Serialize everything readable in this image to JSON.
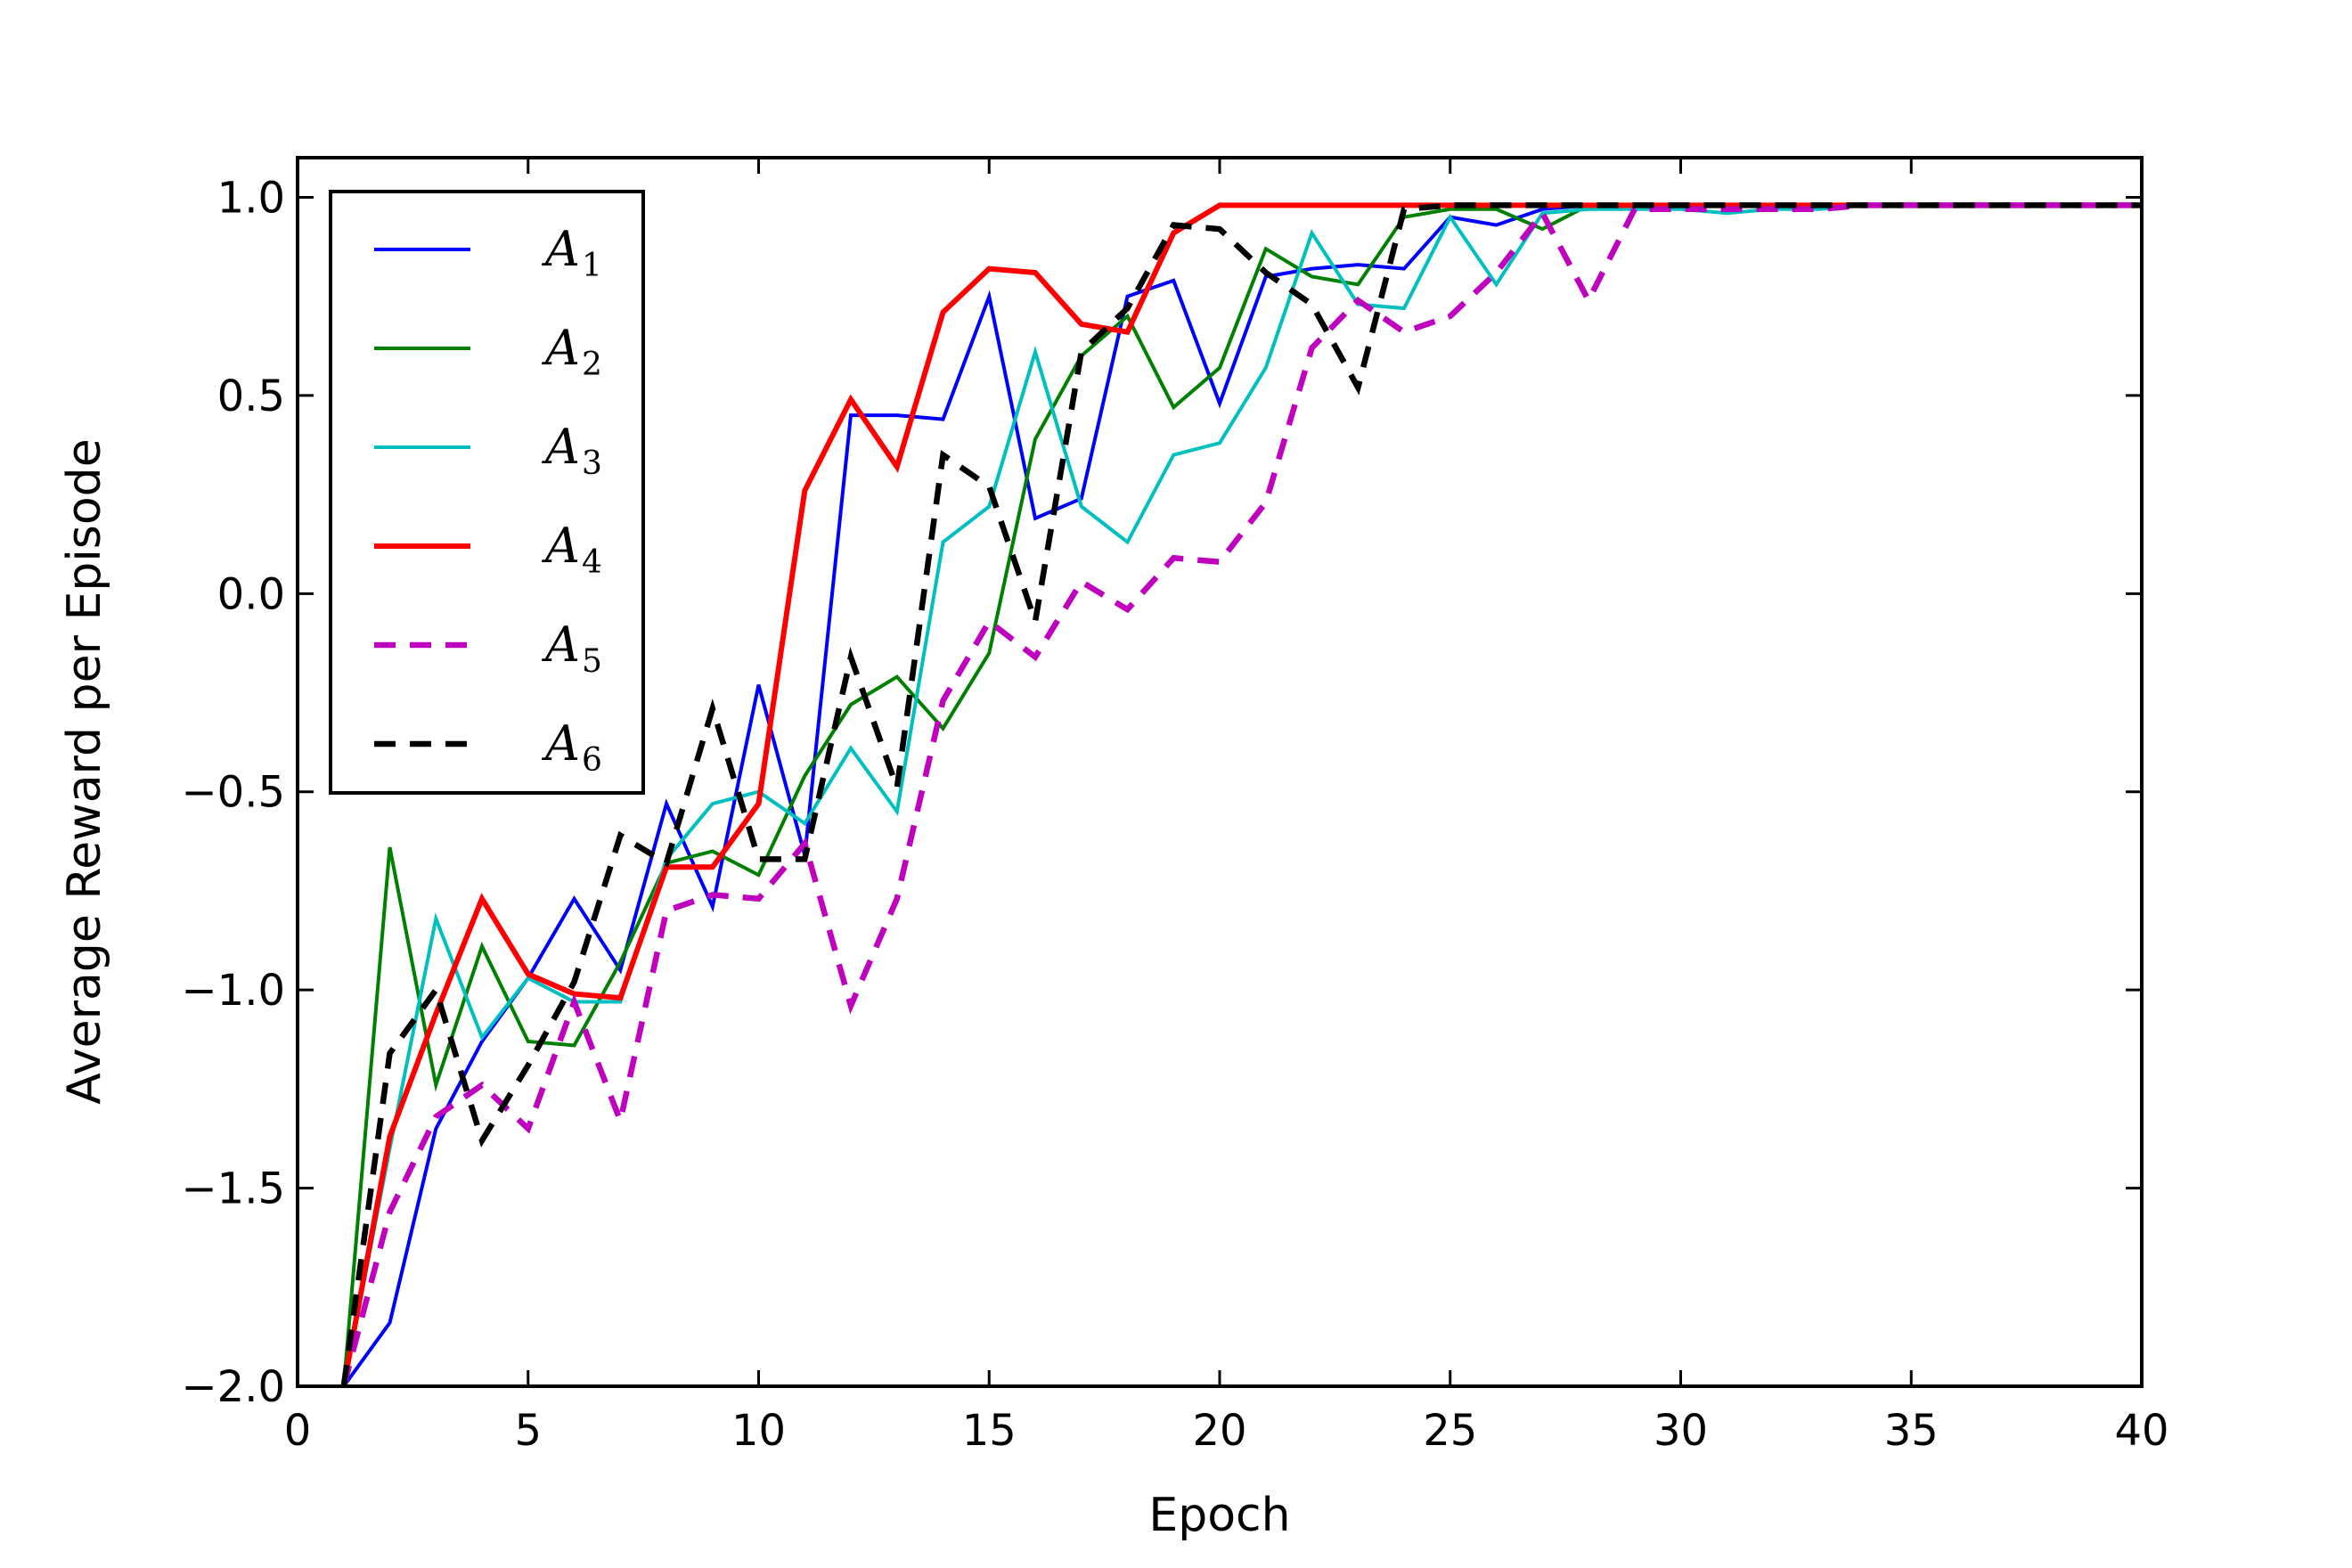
{
  "chart_data": {
    "type": "line",
    "title": "",
    "xlabel": "Epoch",
    "ylabel": "Average Reward per Episode",
    "xlim": [
      0,
      40
    ],
    "ylim": [
      -2.0,
      1.1
    ],
    "xticks": [
      0,
      5,
      10,
      15,
      20,
      25,
      30,
      35,
      40
    ],
    "xtick_labels": [
      "0",
      "5",
      "10",
      "15",
      "20",
      "25",
      "30",
      "35",
      "40"
    ],
    "yticks": [
      -2.0,
      -1.5,
      -1.0,
      -0.5,
      0.0,
      0.5,
      1.0
    ],
    "ytick_labels": [
      "−2.0",
      "−1.5",
      "−1.0",
      "−0.5",
      "0.0",
      "0.5",
      "1.0"
    ],
    "grid": false,
    "legend_position": "upper-left",
    "x": [
      1,
      2,
      3,
      4,
      5,
      6,
      7,
      8,
      9,
      10,
      11,
      12,
      13,
      14,
      15,
      16,
      17,
      18,
      19,
      20,
      21,
      22,
      23,
      24,
      25,
      26,
      27,
      28,
      29,
      30,
      31,
      32,
      33,
      34,
      35,
      36,
      37,
      38,
      39,
      40
    ],
    "series": [
      {
        "name": "A",
        "sub": "1",
        "color": "#0000ff",
        "style": "solid",
        "values": [
          -2.0,
          -1.84,
          -1.35,
          -1.13,
          -0.97,
          -0.77,
          -0.95,
          -0.53,
          -0.79,
          -0.23,
          -0.66,
          0.45,
          0.45,
          0.44,
          0.75,
          0.19,
          0.24,
          0.75,
          0.79,
          0.48,
          0.8,
          0.82,
          0.83,
          0.82,
          0.95,
          0.93,
          0.97,
          0.98,
          0.98,
          0.98,
          0.98,
          0.98,
          0.98,
          0.98,
          0.98,
          0.98,
          0.98,
          0.98,
          0.98,
          0.98
        ]
      },
      {
        "name": "A",
        "sub": "2",
        "color": "#008000",
        "style": "solid",
        "values": [
          -2.0,
          -0.64,
          -1.24,
          -0.89,
          -1.13,
          -1.14,
          -0.93,
          -0.68,
          -0.65,
          -0.71,
          -0.46,
          -0.28,
          -0.21,
          -0.34,
          -0.15,
          0.39,
          0.6,
          0.7,
          0.47,
          0.57,
          0.87,
          0.8,
          0.78,
          0.95,
          0.97,
          0.97,
          0.92,
          0.98,
          0.98,
          0.98,
          0.98,
          0.98,
          0.98,
          0.98,
          0.98,
          0.98,
          0.98,
          0.98,
          0.98,
          0.98
        ]
      },
      {
        "name": "A",
        "sub": "3",
        "color": "#00bfbf",
        "style": "solid",
        "values": [
          -2.0,
          -1.4,
          -0.82,
          -1.12,
          -0.97,
          -1.03,
          -1.03,
          -0.67,
          -0.53,
          -0.5,
          -0.58,
          -0.39,
          -0.55,
          0.13,
          0.22,
          0.61,
          0.22,
          0.13,
          0.35,
          0.38,
          0.57,
          0.91,
          0.73,
          0.72,
          0.95,
          0.78,
          0.96,
          0.97,
          0.97,
          0.97,
          0.96,
          0.97,
          0.97,
          0.98,
          0.98,
          0.98,
          0.98,
          0.98,
          0.98,
          0.98
        ]
      },
      {
        "name": "A",
        "sub": "4",
        "color": "#ff0000",
        "style": "solid-thick",
        "values": [
          -2.0,
          -1.37,
          -1.06,
          -0.77,
          -0.96,
          -1.01,
          -1.02,
          -0.69,
          -0.69,
          -0.53,
          0.26,
          0.49,
          0.32,
          0.71,
          0.82,
          0.81,
          0.68,
          0.66,
          0.91,
          0.98,
          0.98,
          0.98,
          0.98,
          0.98,
          0.98,
          0.98,
          0.98,
          0.98,
          0.98,
          0.98,
          0.98,
          0.98,
          0.98,
          0.98,
          0.98,
          0.98,
          0.98,
          0.98,
          0.98,
          0.98
        ]
      },
      {
        "name": "A",
        "sub": "5",
        "color": "#bf00bf",
        "style": "dashed",
        "values": [
          -2.0,
          -1.56,
          -1.32,
          -1.24,
          -1.35,
          -1.03,
          -1.33,
          -0.8,
          -0.76,
          -0.77,
          -0.63,
          -1.04,
          -0.77,
          -0.27,
          -0.07,
          -0.16,
          0.03,
          -0.04,
          0.09,
          0.08,
          0.23,
          0.62,
          0.74,
          0.66,
          0.7,
          0.81,
          0.96,
          0.74,
          0.97,
          0.97,
          0.97,
          0.97,
          0.97,
          0.98,
          0.98,
          0.98,
          0.98,
          0.98,
          0.98,
          0.98
        ]
      },
      {
        "name": "A",
        "sub": "6",
        "color": "#000000",
        "style": "dashed",
        "values": [
          -2.0,
          -1.16,
          -1.0,
          -1.38,
          -1.19,
          -0.98,
          -0.61,
          -0.68,
          -0.29,
          -0.67,
          -0.67,
          -0.16,
          -0.49,
          0.35,
          0.27,
          -0.07,
          0.61,
          0.72,
          0.93,
          0.92,
          0.81,
          0.73,
          0.52,
          0.97,
          0.98,
          0.98,
          0.98,
          0.98,
          0.98,
          0.98,
          0.98,
          0.98,
          0.98,
          0.98,
          0.98,
          0.98,
          0.98,
          0.98,
          0.98,
          0.98
        ]
      }
    ]
  }
}
